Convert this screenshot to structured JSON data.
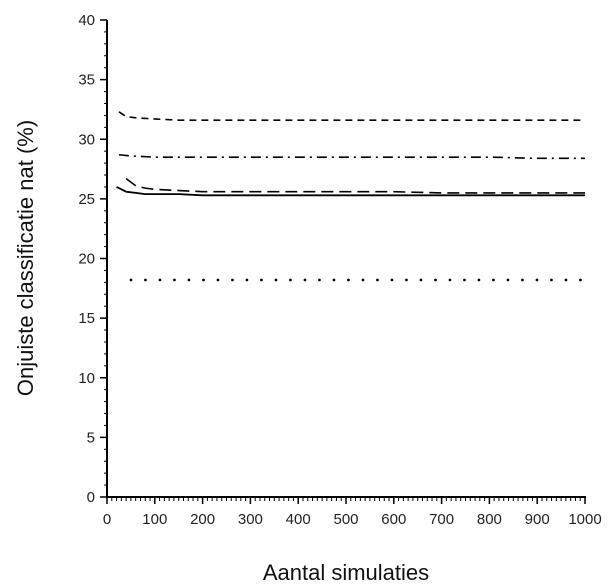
{
  "chart_data": {
    "type": "line",
    "title": "",
    "xlabel": "Aantal simulaties",
    "ylabel": "Onjuiste classificatie nat (%)",
    "xlim": [
      0,
      1000
    ],
    "ylim": [
      0,
      40
    ],
    "x_ticks": [
      0,
      100,
      200,
      300,
      400,
      500,
      600,
      700,
      800,
      900,
      1000
    ],
    "y_ticks": [
      0,
      5,
      10,
      15,
      20,
      25,
      30,
      35,
      40
    ],
    "grid": false,
    "legend": "none",
    "series": [
      {
        "style": "short-dash",
        "x": [
          25,
          40,
          60,
          100,
          150,
          200,
          300,
          400,
          500,
          600,
          700,
          800,
          900,
          1000
        ],
        "y": [
          32.3,
          31.9,
          31.8,
          31.7,
          31.6,
          31.6,
          31.6,
          31.6,
          31.6,
          31.6,
          31.6,
          31.6,
          31.6,
          31.6
        ]
      },
      {
        "style": "dash-dot",
        "x": [
          25,
          50,
          100,
          200,
          300,
          400,
          500,
          600,
          700,
          800,
          900,
          1000
        ],
        "y": [
          28.7,
          28.6,
          28.5,
          28.5,
          28.5,
          28.5,
          28.5,
          28.5,
          28.5,
          28.5,
          28.4,
          28.4
        ]
      },
      {
        "style": "long-dash",
        "x": [
          40,
          60,
          80,
          100,
          150,
          200,
          300,
          400,
          500,
          600,
          700,
          800,
          900,
          1000
        ],
        "y": [
          26.7,
          26.1,
          25.9,
          25.8,
          25.7,
          25.6,
          25.6,
          25.6,
          25.6,
          25.6,
          25.5,
          25.5,
          25.5,
          25.5
        ]
      },
      {
        "style": "solid",
        "x": [
          20,
          40,
          60,
          80,
          100,
          150,
          200,
          300,
          400,
          500,
          600,
          700,
          800,
          900,
          1000
        ],
        "y": [
          26.0,
          25.6,
          25.5,
          25.4,
          25.4,
          25.4,
          25.3,
          25.3,
          25.3,
          25.3,
          25.3,
          25.3,
          25.3,
          25.3,
          25.3
        ]
      },
      {
        "style": "dotted",
        "x": [
          50,
          1000
        ],
        "y": [
          18.2,
          18.2
        ]
      }
    ]
  }
}
